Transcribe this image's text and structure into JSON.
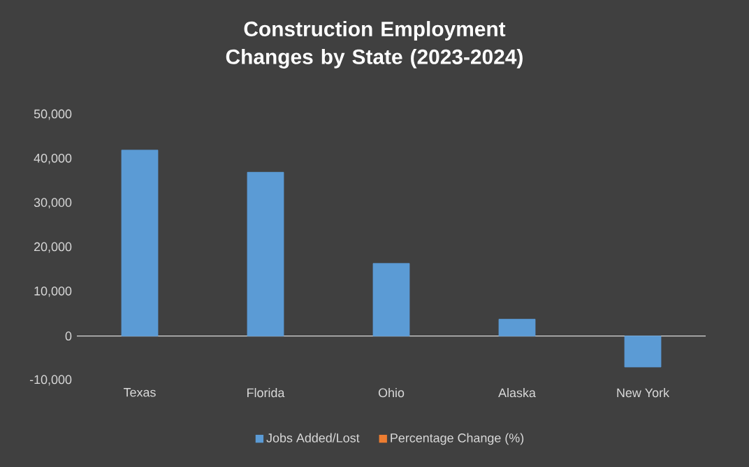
{
  "chart_data": {
    "type": "bar",
    "title": "Construction Employment Changes by State (2023-2024)",
    "categories": [
      "Texas",
      "Florida",
      "Ohio",
      "Alaska",
      "New York"
    ],
    "series": [
      {
        "name": "Jobs Added/Lost",
        "color": "#5b9bd5",
        "values": [
          42000,
          37000,
          16400,
          3800,
          -7000
        ]
      },
      {
        "name": "Percentage Change (%)",
        "color": "#ed7d31",
        "values": [
          null,
          null,
          null,
          null,
          null
        ]
      }
    ],
    "stacked": true,
    "ylim": [
      -10000,
      50000
    ],
    "yticks": [
      {
        "value": -10000,
        "label": "-10,000"
      },
      {
        "value": 0,
        "label": "0"
      },
      {
        "value": 10000,
        "label": "10,000"
      },
      {
        "value": 20000,
        "label": "20,000"
      },
      {
        "value": 30000,
        "label": "30,000"
      },
      {
        "value": 40000,
        "label": "40,000"
      },
      {
        "value": 50000,
        "label": "50,000"
      }
    ],
    "legend": "bottom"
  }
}
